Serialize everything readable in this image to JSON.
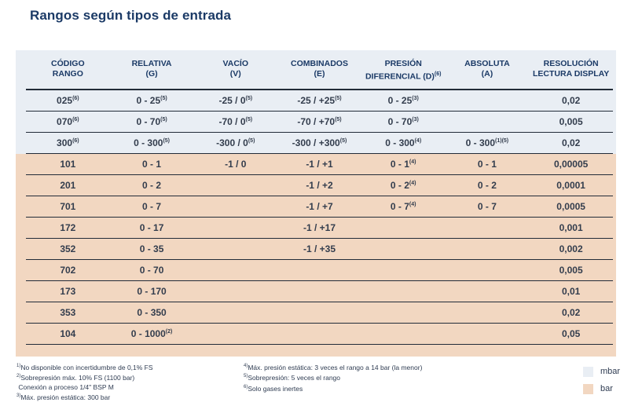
{
  "title": "Rangos según tipos de entrada",
  "colors": {
    "accent_blue": "#1b3a66",
    "mbar_bg": "#e9eef4",
    "bar_bg": "#f2d7c1",
    "rule": "#222b38",
    "cell_text": "#333d4d"
  },
  "table": {
    "headers": [
      {
        "line1": "CÓDIGO",
        "line2": "RANGO"
      },
      {
        "line1": "RELATIVA",
        "line2": "(G)"
      },
      {
        "line1": "VACÍO",
        "line2": "(V)"
      },
      {
        "line1": "COMBINADOS",
        "line2": "(E)"
      },
      {
        "line1": "PRESIÓN",
        "line2": "DIFERENCIAL (D)^(6)"
      },
      {
        "line1": "ABSOLUTA",
        "line2": "(A)"
      },
      {
        "line1": "RESOLUCIÓN",
        "line2": "LECTURA DISPLAY"
      }
    ],
    "rows": [
      {
        "group": "mbar",
        "cells": [
          "025^(6)",
          "0 - 25^(5)",
          "-25 / 0^(5)",
          "-25 / +25^(5)",
          "0 - 25^(3)",
          "",
          "0,02"
        ]
      },
      {
        "group": "mbar",
        "cells": [
          "070^(6)",
          "0 - 70^(5)",
          "-70 / 0^(5)",
          "-70 / +70^(5)",
          "0 - 70^(3)",
          "",
          "0,005"
        ]
      },
      {
        "group": "mbar",
        "cells": [
          "300^(6)",
          "0 - 300^(5)",
          "-300 / 0^(5)",
          "-300 / +300^(5)",
          "0 - 300^(4)",
          "0 - 300^(1)(5)",
          "0,02"
        ]
      },
      {
        "group": "bar",
        "cells": [
          "101",
          "0 - 1",
          "-1 / 0",
          "-1 / +1",
          "0 - 1^(4)",
          "0 - 1",
          "0,00005"
        ]
      },
      {
        "group": "bar",
        "cells": [
          "201",
          "0 - 2",
          "",
          "-1 / +2",
          "0 - 2^(4)",
          "0 - 2",
          "0,0001"
        ]
      },
      {
        "group": "bar",
        "cells": [
          "701",
          "0 - 7",
          "",
          "-1 / +7",
          "0 - 7^(4)",
          "0 - 7",
          "0,0005"
        ]
      },
      {
        "group": "bar",
        "cells": [
          "172",
          "0 - 17",
          "",
          "-1 / +17",
          "",
          "",
          "0,001"
        ]
      },
      {
        "group": "bar",
        "cells": [
          "352",
          "0 - 35",
          "",
          "-1 / +35",
          "",
          "",
          "0,002"
        ]
      },
      {
        "group": "bar",
        "cells": [
          "702",
          "0 - 70",
          "",
          "",
          "",
          "",
          "0,005"
        ]
      },
      {
        "group": "bar",
        "cells": [
          "173",
          "0 - 170",
          "",
          "",
          "",
          "",
          "0,01"
        ]
      },
      {
        "group": "bar",
        "cells": [
          "353",
          "0 - 350",
          "",
          "",
          "",
          "",
          "0,02"
        ]
      },
      {
        "group": "bar",
        "cells": [
          "104",
          "0 - 1000^(2)",
          "",
          "",
          "",
          "",
          "0,05"
        ]
      }
    ]
  },
  "footnotes": {
    "left": [
      {
        "sup": "1)",
        "text": "No disponible con incertidumbre de 0,1% FS"
      },
      {
        "sup": "2)",
        "text": "Sobrepresión máx. 10% FS (1100 bar)"
      },
      {
        "sup": "",
        "text": "Conexión a proceso 1/4\" BSP M"
      },
      {
        "sup": "3)",
        "text": "Máx. presión estática: 300 bar"
      }
    ],
    "right": [
      {
        "sup": "4)",
        "text": "Máx. presión estática: 3 veces el rango a 14 bar (la menor)"
      },
      {
        "sup": "5)",
        "text": "Sobrepresión: 5 veces el rango"
      },
      {
        "sup": "6)",
        "text": "Solo gases inertes"
      }
    ]
  },
  "legend": [
    {
      "label": "mbar",
      "color": "#e9eef4"
    },
    {
      "label": "bar",
      "color": "#f2d7c1"
    }
  ]
}
